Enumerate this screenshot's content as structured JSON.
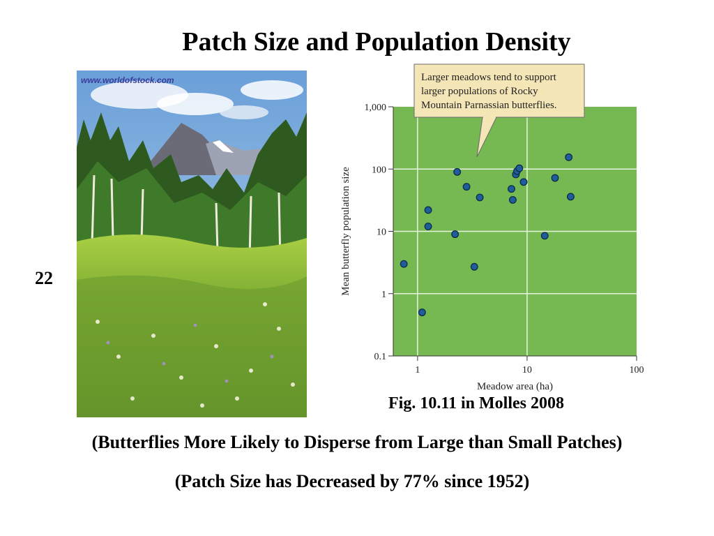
{
  "slide": {
    "title": "Patch Size and Population Density",
    "slide_number": "22",
    "figure_caption": "Fig. 10.11 in Molles 2008",
    "note_1": "(Butterflies More Likely to Disperse from Large than Small Patches)",
    "note_2": "(Patch Size has Decreased by 77% since 1952)"
  },
  "photo": {
    "watermark": "www.worldofstock.com"
  },
  "colors": {
    "plot_bg": "#76b852",
    "point_fill": "#1f5e9a",
    "point_stroke": "#0d2c4a",
    "callout_bg": "#f5e6b8",
    "gridline": "#e8f3df"
  },
  "chart_data": {
    "type": "scatter",
    "x_scale": "log",
    "y_scale": "log",
    "xlabel": "Meadow area (ha)",
    "ylabel": "Mean butterfly population size",
    "xlim": [
      0.6,
      100
    ],
    "ylim": [
      0.1,
      1000
    ],
    "x_ticks": [
      {
        "value": 1,
        "label": "1"
      },
      {
        "value": 10,
        "label": "10"
      },
      {
        "value": 100,
        "label": "100"
      }
    ],
    "y_ticks": [
      {
        "value": 0.1,
        "label": "0.1"
      },
      {
        "value": 1,
        "label": "1"
      },
      {
        "value": 10,
        "label": "10"
      },
      {
        "value": 100,
        "label": "100"
      },
      {
        "value": 1000,
        "label": "1,000"
      }
    ],
    "grid": true,
    "annotation": [
      "Larger meadows tend to support",
      "larger populations of Rocky",
      "Mountain Parnassian butterflies."
    ],
    "points": [
      {
        "x": 0.75,
        "y": 3
      },
      {
        "x": 1.1,
        "y": 0.5
      },
      {
        "x": 1.25,
        "y": 22
      },
      {
        "x": 1.25,
        "y": 12
      },
      {
        "x": 2.2,
        "y": 9
      },
      {
        "x": 2.3,
        "y": 90
      },
      {
        "x": 2.8,
        "y": 52
      },
      {
        "x": 3.3,
        "y": 2.7
      },
      {
        "x": 3.7,
        "y": 35
      },
      {
        "x": 7.2,
        "y": 48
      },
      {
        "x": 7.4,
        "y": 32
      },
      {
        "x": 7.9,
        "y": 82
      },
      {
        "x": 8.1,
        "y": 93
      },
      {
        "x": 8.5,
        "y": 103
      },
      {
        "x": 9.3,
        "y": 62
      },
      {
        "x": 14.5,
        "y": 8.5
      },
      {
        "x": 18,
        "y": 72
      },
      {
        "x": 24,
        "y": 155
      },
      {
        "x": 25,
        "y": 36
      }
    ]
  }
}
